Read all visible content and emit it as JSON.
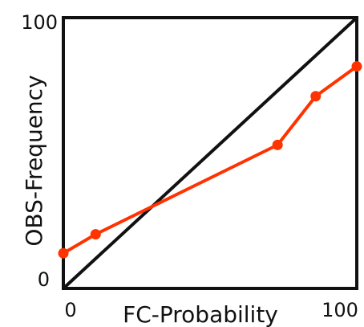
{
  "chart_data": {
    "type": "line",
    "xlabel": "FC-Probability",
    "ylabel": "OBS-Frequency",
    "xlim": [
      0,
      100
    ],
    "ylim": [
      0,
      100
    ],
    "grid": false,
    "x_ticks": [
      "0",
      "100"
    ],
    "y_ticks": [
      "0",
      "100"
    ],
    "reference_line": {
      "from": [
        0,
        0
      ],
      "to": [
        100,
        100
      ],
      "color": "#111111"
    },
    "series": [
      {
        "color": "#ff3300",
        "x": [
          0,
          11,
          73,
          86,
          100
        ],
        "y": [
          13,
          20,
          53,
          71,
          82
        ]
      }
    ]
  }
}
